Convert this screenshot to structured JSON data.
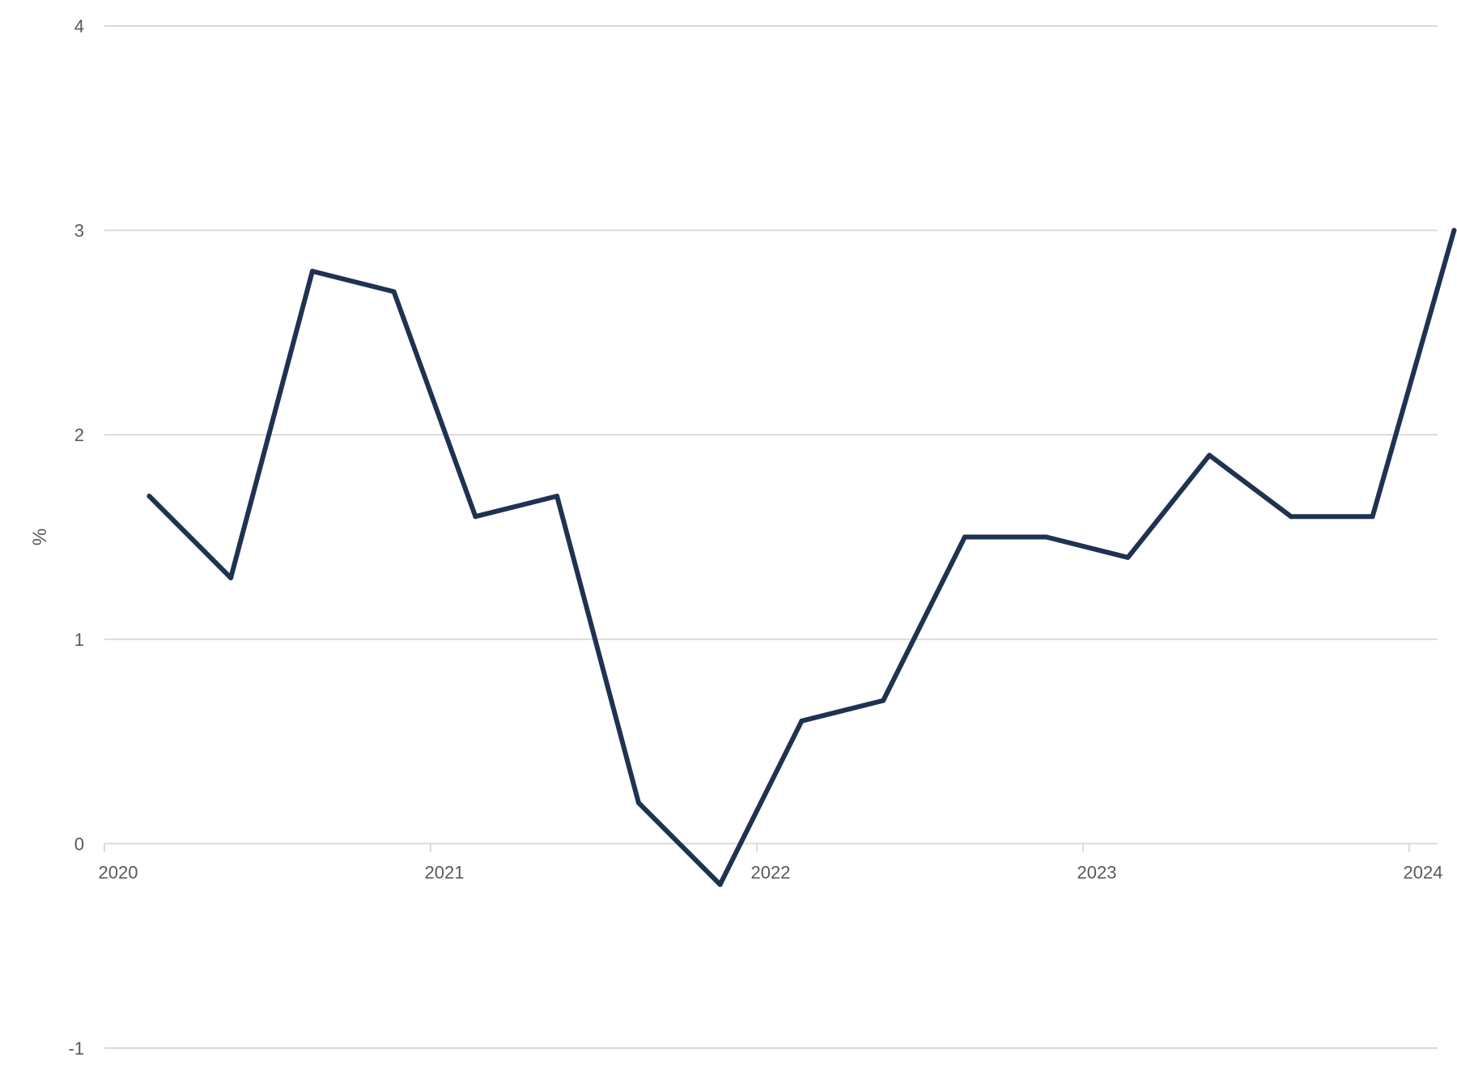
{
  "chart_data": {
    "type": "line",
    "title": "",
    "xlabel": "",
    "ylabel": "%",
    "ylim": [
      -1,
      4
    ],
    "yticks": [
      "-1",
      "0",
      "1",
      "2",
      "3",
      "4"
    ],
    "xticks": [
      "2020",
      "2021",
      "2022",
      "2023",
      "2024"
    ],
    "grid": "horizontal",
    "legend": "none",
    "colors": {
      "line": "#1f3251",
      "grid": "#d9d9d9",
      "text": "#595959"
    },
    "series": [
      {
        "x": [
          "2020-Q1",
          "2020-Q2",
          "2020-Q3",
          "2020-Q4",
          "2021-Q1",
          "2021-Q2",
          "2021-Q3",
          "2021-Q4",
          "2022-Q1",
          "2022-Q2",
          "2022-Q3",
          "2022-Q4",
          "2023-Q1",
          "2023-Q2",
          "2023-Q3",
          "2023-Q4",
          "2024-Q1"
        ],
        "values": [
          1.7,
          1.3,
          2.8,
          2.7,
          1.6,
          1.7,
          0.2,
          -0.2,
          0.6,
          0.7,
          1.5,
          1.5,
          1.4,
          1.9,
          1.6,
          1.6,
          3.0
        ]
      }
    ]
  }
}
